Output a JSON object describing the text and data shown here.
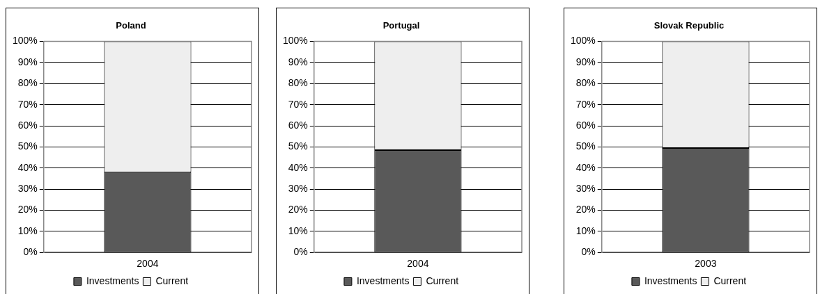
{
  "chart_data": [
    {
      "type": "bar",
      "title": "Poland",
      "categories": [
        "2004"
      ],
      "stacked": true,
      "ylim": [
        0,
        100
      ],
      "yticks": [
        {
          "value": 0,
          "label": "0%"
        },
        {
          "value": 10,
          "label": "10%"
        },
        {
          "value": 20,
          "label": "20%"
        },
        {
          "value": 30,
          "label": "30%"
        },
        {
          "value": 40,
          "label": "40%"
        },
        {
          "value": 50,
          "label": "50%"
        },
        {
          "value": 60,
          "label": "60%"
        },
        {
          "value": 70,
          "label": "70%"
        },
        {
          "value": 80,
          "label": "80%"
        },
        {
          "value": 90,
          "label": "90%"
        },
        {
          "value": 100,
          "label": "100%"
        }
      ],
      "grid": "y",
      "legend": "bottom",
      "series": [
        {
          "name": "Investments",
          "color": "#595959",
          "values": [
            38
          ]
        },
        {
          "name": "Current",
          "color": "#eeeeee",
          "values": [
            62
          ]
        }
      ]
    },
    {
      "type": "bar",
      "title": "Portugal",
      "categories": [
        "2004"
      ],
      "stacked": true,
      "ylim": [
        0,
        100
      ],
      "yticks": [
        {
          "value": 0,
          "label": "0%"
        },
        {
          "value": 10,
          "label": "10%"
        },
        {
          "value": 20,
          "label": "20%"
        },
        {
          "value": 30,
          "label": "30%"
        },
        {
          "value": 40,
          "label": "40%"
        },
        {
          "value": 50,
          "label": "50%"
        },
        {
          "value": 60,
          "label": "60%"
        },
        {
          "value": 70,
          "label": "70%"
        },
        {
          "value": 80,
          "label": "80%"
        },
        {
          "value": 90,
          "label": "90%"
        },
        {
          "value": 100,
          "label": "100%"
        }
      ],
      "grid": "y",
      "legend": "bottom",
      "series": [
        {
          "name": "Investments",
          "color": "#595959",
          "values": [
            48.5
          ]
        },
        {
          "name": "Current",
          "color": "#eeeeee",
          "values": [
            51.5
          ]
        }
      ]
    },
    {
      "type": "bar",
      "title": "Slovak Republic",
      "categories": [
        "2003"
      ],
      "stacked": true,
      "ylim": [
        0,
        100
      ],
      "yticks": [
        {
          "value": 0,
          "label": "0%"
        },
        {
          "value": 10,
          "label": "10%"
        },
        {
          "value": 20,
          "label": "20%"
        },
        {
          "value": 30,
          "label": "30%"
        },
        {
          "value": 40,
          "label": "40%"
        },
        {
          "value": 50,
          "label": "50%"
        },
        {
          "value": 60,
          "label": "60%"
        },
        {
          "value": 70,
          "label": "70%"
        },
        {
          "value": 80,
          "label": "80%"
        },
        {
          "value": 90,
          "label": "90%"
        },
        {
          "value": 100,
          "label": "100%"
        }
      ],
      "grid": "y",
      "legend": "bottom",
      "series": [
        {
          "name": "Investments",
          "color": "#595959",
          "values": [
            49.5
          ]
        },
        {
          "name": "Current",
          "color": "#eeeeee",
          "values": [
            50.5
          ]
        }
      ]
    }
  ]
}
